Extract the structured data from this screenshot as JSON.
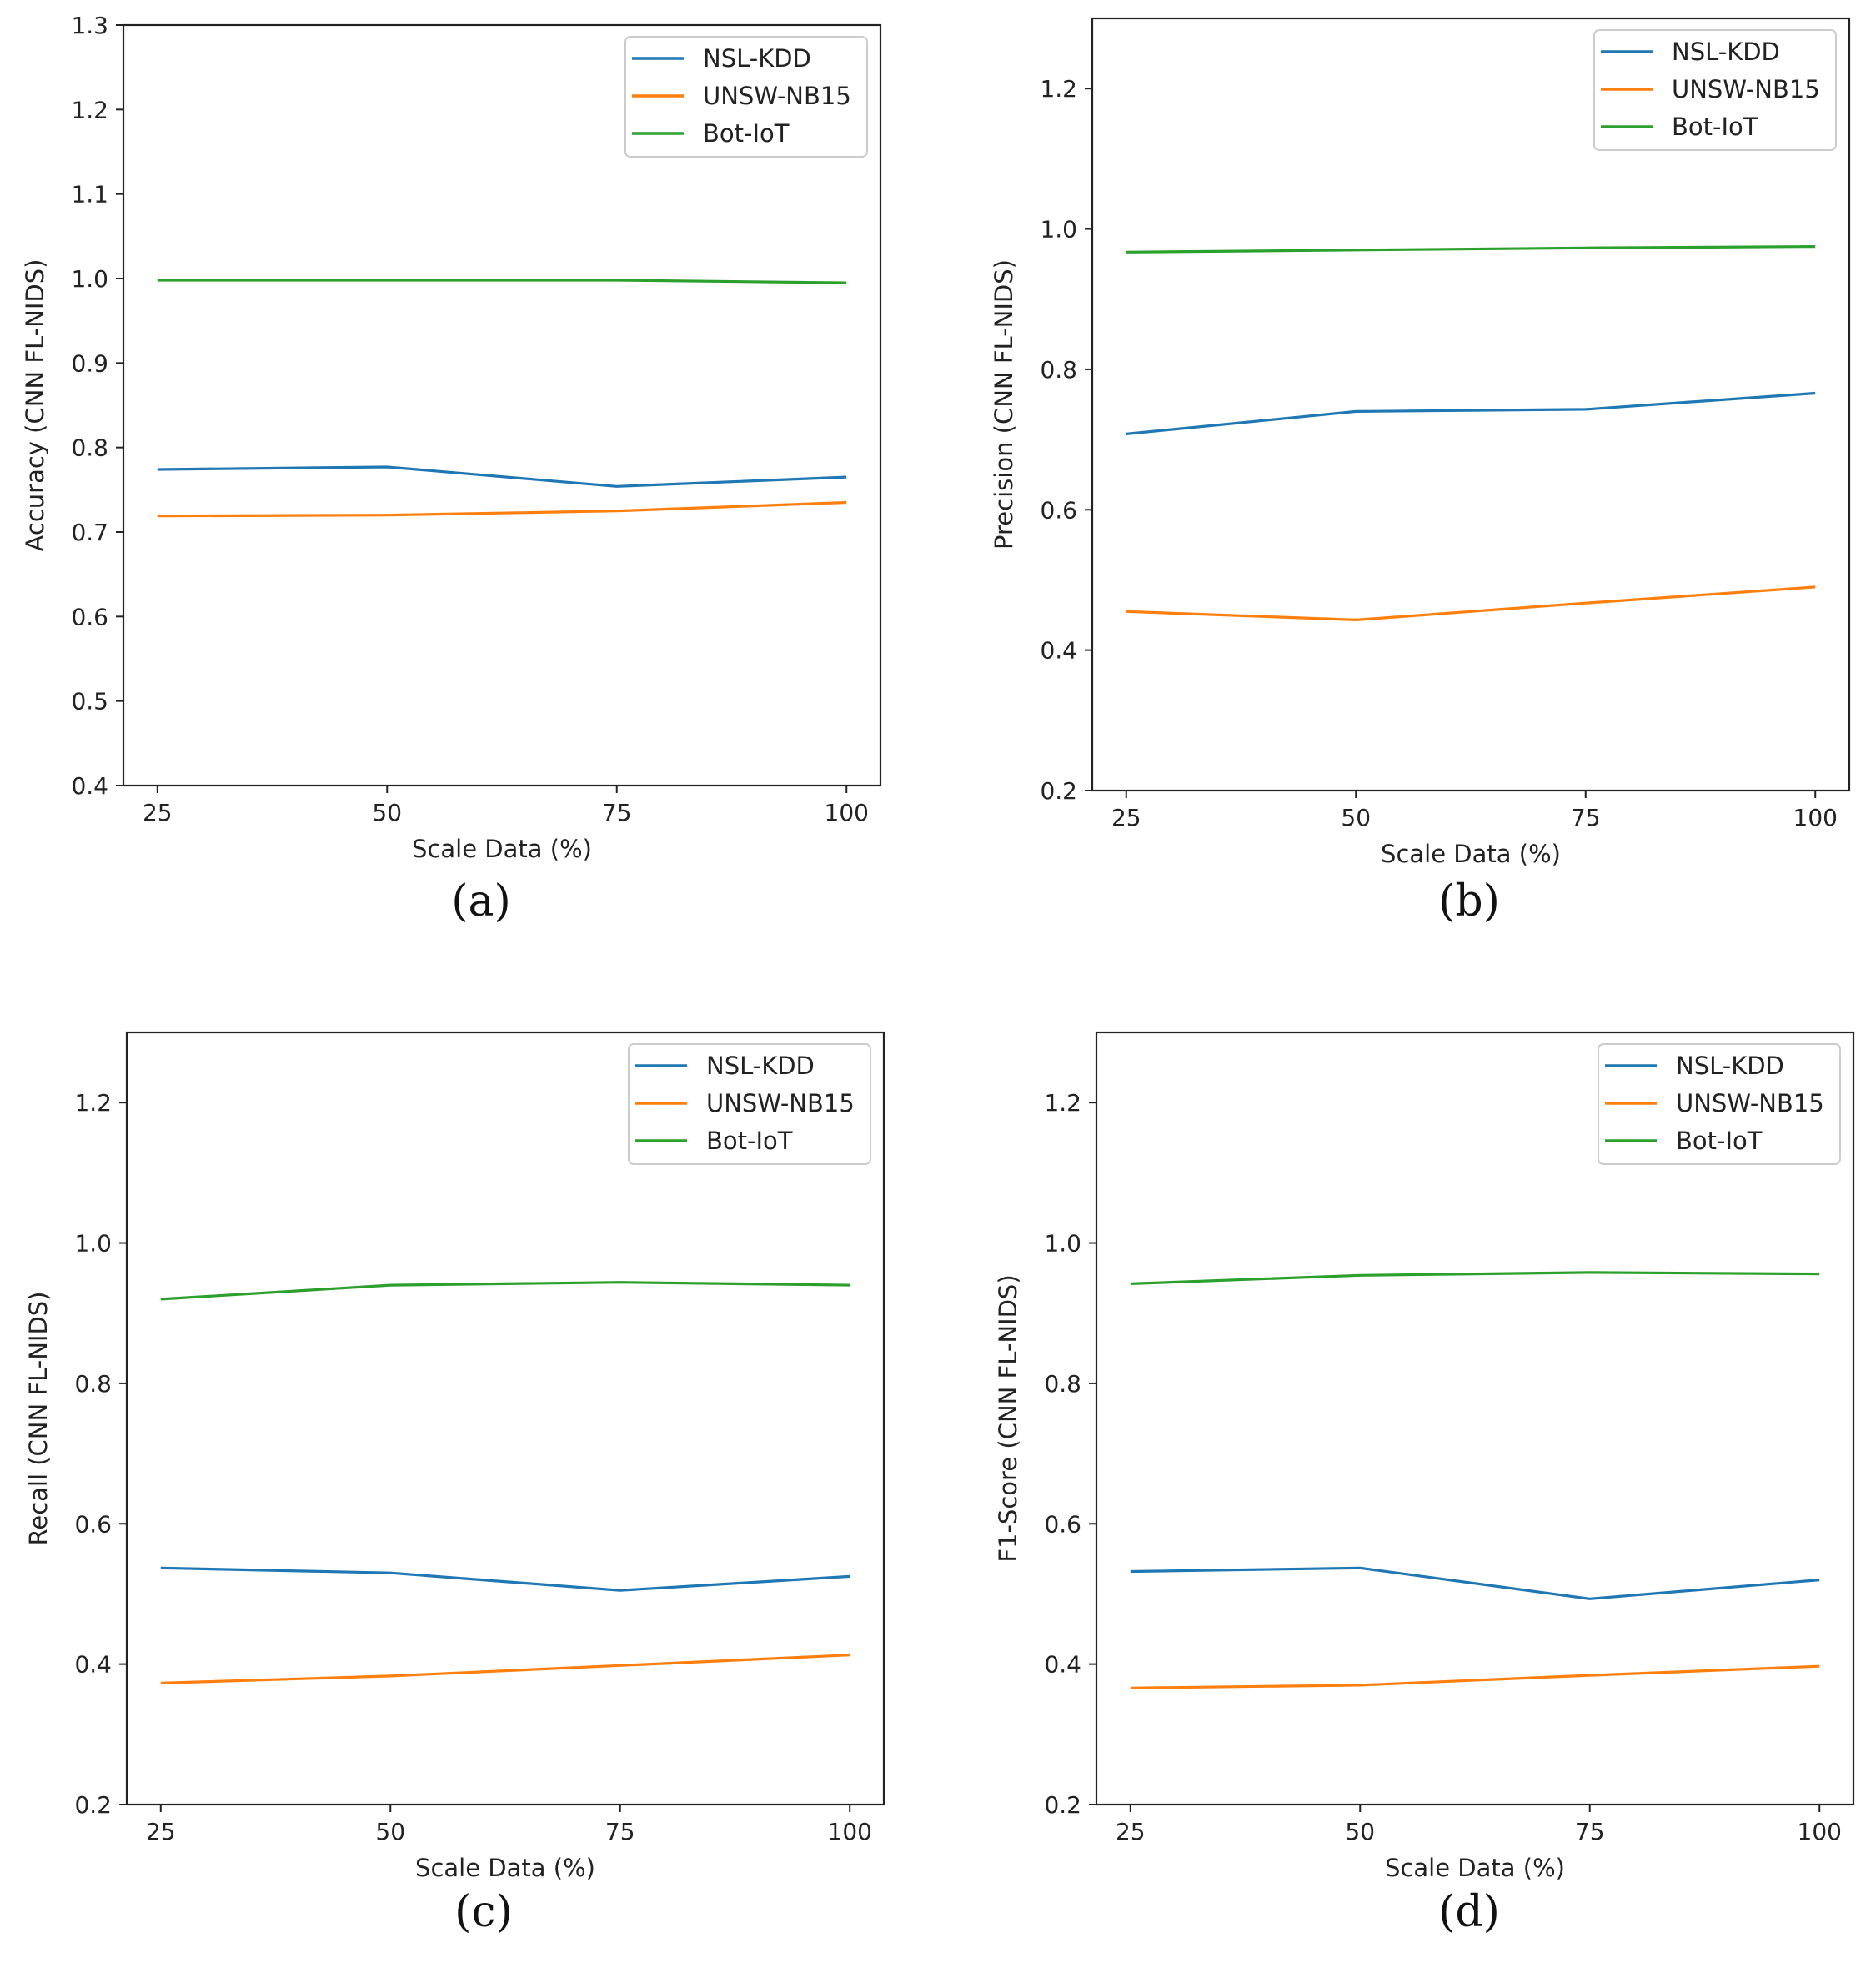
{
  "colors": {
    "NSL-KDD": "#1f77b4",
    "UNSW-NB15": "#ff7f0e",
    "Bot-IoT": "#2ca02c",
    "axis": "#222222"
  },
  "chart_data": [
    {
      "type": "line",
      "caption": "(a)",
      "xlabel": "Scale Data (%)",
      "ylabel": "Accuracy (CNN FL-NIDS)",
      "x": [
        25,
        50,
        75,
        100
      ],
      "xlim": [
        21.3,
        103.7
      ],
      "ylim": [
        0.4,
        1.3
      ],
      "xticks": [
        25,
        50,
        75,
        100
      ],
      "xtick_labels": [
        "25",
        "50",
        "75",
        "100"
      ],
      "yticks": [
        0.4,
        0.5,
        0.6,
        0.7,
        0.8,
        0.9,
        1.0,
        1.1,
        1.2,
        1.3
      ],
      "ytick_labels": [
        "0.4",
        "0.5",
        "0.6",
        "0.7",
        "0.8",
        "0.9",
        "1.0",
        "1.1",
        "1.2",
        "1.3"
      ],
      "legend_position": "top-right",
      "series": [
        {
          "name": "NSL-KDD",
          "values": [
            0.774,
            0.777,
            0.754,
            0.765
          ]
        },
        {
          "name": "UNSW-NB15",
          "values": [
            0.719,
            0.72,
            0.725,
            0.735
          ]
        },
        {
          "name": "Bot-IoT",
          "values": [
            0.998,
            0.998,
            0.998,
            0.995
          ]
        }
      ]
    },
    {
      "type": "line",
      "caption": "(b)",
      "xlabel": "Scale Data (%)",
      "ylabel": "Precision (CNN FL-NIDS)",
      "x": [
        25,
        50,
        75,
        100
      ],
      "xlim": [
        21.3,
        103.7
      ],
      "ylim": [
        0.2,
        1.3
      ],
      "xticks": [
        25,
        50,
        75,
        100
      ],
      "xtick_labels": [
        "25",
        "50",
        "75",
        "100"
      ],
      "yticks": [
        0.2,
        0.4,
        0.6,
        0.8,
        1.0,
        1.2
      ],
      "ytick_labels": [
        "0.2",
        "0.4",
        "0.6",
        "0.8",
        "1.0",
        "1.2"
      ],
      "legend_position": "top-right",
      "series": [
        {
          "name": "NSL-KDD",
          "values": [
            0.708,
            0.74,
            0.743,
            0.766
          ]
        },
        {
          "name": "UNSW-NB15",
          "values": [
            0.455,
            0.443,
            0.467,
            0.49
          ]
        },
        {
          "name": "Bot-IoT",
          "values": [
            0.967,
            0.97,
            0.973,
            0.975
          ]
        }
      ]
    },
    {
      "type": "line",
      "caption": "(c)",
      "xlabel": "Scale Data (%)",
      "ylabel": "Recall (CNN FL-NIDS)",
      "x": [
        25,
        50,
        75,
        100
      ],
      "xlim": [
        21.3,
        103.7
      ],
      "ylim": [
        0.2,
        1.3
      ],
      "xticks": [
        25,
        50,
        75,
        100
      ],
      "xtick_labels": [
        "25",
        "50",
        "75",
        "100"
      ],
      "yticks": [
        0.2,
        0.4,
        0.6,
        0.8,
        1.0,
        1.2
      ],
      "ytick_labels": [
        "0.2",
        "0.4",
        "0.6",
        "0.8",
        "1.0",
        "1.2"
      ],
      "legend_position": "top-right",
      "series": [
        {
          "name": "NSL-KDD",
          "values": [
            0.537,
            0.53,
            0.505,
            0.525
          ]
        },
        {
          "name": "UNSW-NB15",
          "values": [
            0.373,
            0.383,
            0.398,
            0.413
          ]
        },
        {
          "name": "Bot-IoT",
          "values": [
            0.92,
            0.94,
            0.944,
            0.94
          ]
        }
      ]
    },
    {
      "type": "line",
      "caption": "(d)",
      "xlabel": "Scale Data (%)",
      "ylabel": "F1-Score (CNN FL-NIDS)",
      "x": [
        25,
        50,
        75,
        100
      ],
      "xlim": [
        21.3,
        103.7
      ],
      "ylim": [
        0.2,
        1.3
      ],
      "xticks": [
        25,
        50,
        75,
        100
      ],
      "xtick_labels": [
        "25",
        "50",
        "75",
        "100"
      ],
      "yticks": [
        0.2,
        0.4,
        0.6,
        0.8,
        1.0,
        1.2
      ],
      "ytick_labels": [
        "0.2",
        "0.4",
        "0.6",
        "0.8",
        "1.0",
        "1.2"
      ],
      "legend_position": "top-right",
      "series": [
        {
          "name": "NSL-KDD",
          "values": [
            0.532,
            0.537,
            0.493,
            0.52
          ]
        },
        {
          "name": "UNSW-NB15",
          "values": [
            0.366,
            0.37,
            0.384,
            0.397
          ]
        },
        {
          "name": "Bot-IoT",
          "values": [
            0.942,
            0.954,
            0.958,
            0.956
          ]
        }
      ]
    }
  ]
}
